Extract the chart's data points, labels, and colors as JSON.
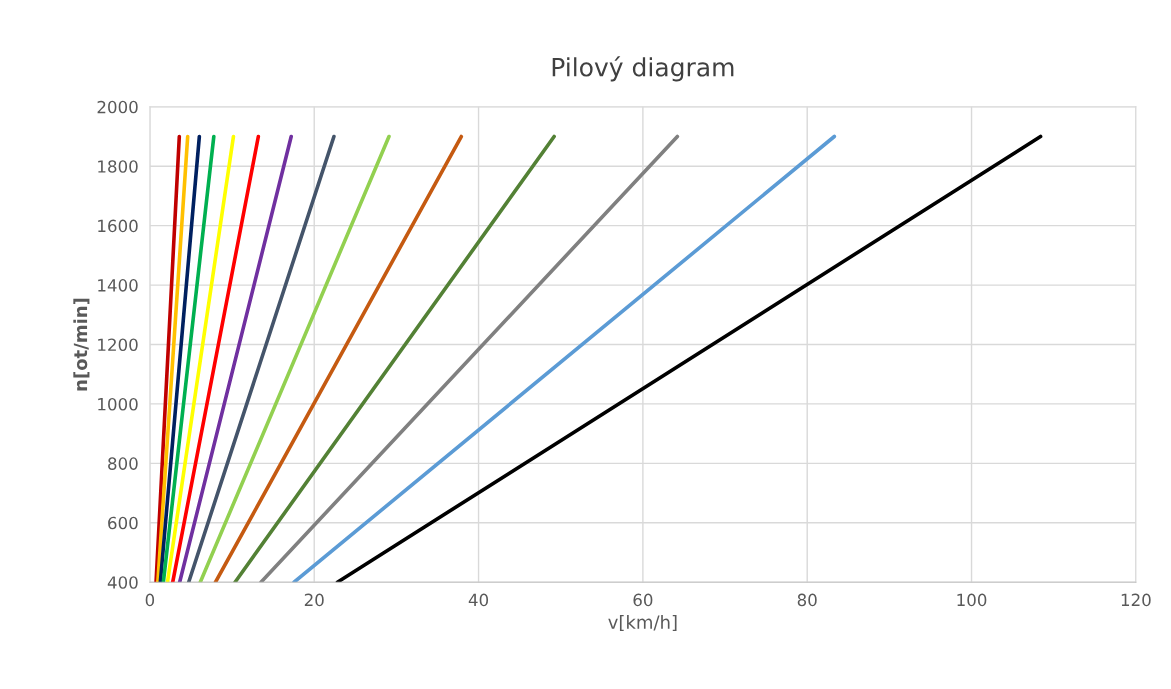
{
  "chart_data": {
    "type": "line",
    "title": "Pilový diagram",
    "xlabel": "v[km/h]",
    "ylabel": "n[ot/min]",
    "xlim": [
      0,
      120
    ],
    "xticks": [
      0,
      20,
      40,
      60,
      80,
      100,
      120
    ],
    "ylim": [
      400,
      2000
    ],
    "yticks": [
      400,
      600,
      800,
      1000,
      1200,
      1400,
      1600,
      1800,
      2000
    ],
    "grid": true,
    "legend": false,
    "marker": "none",
    "line_style": "solid",
    "series": [
      {
        "color": "#c00000",
        "x": [
          0.75,
          3.58
        ],
        "values": [
          400,
          1900
        ]
      },
      {
        "color": "#ffc000",
        "x": [
          0.97,
          4.6
        ],
        "values": [
          400,
          1900
        ]
      },
      {
        "color": "#002060",
        "x": [
          1.27,
          6.02
        ],
        "values": [
          400,
          1900
        ]
      },
      {
        "color": "#00b050",
        "x": [
          1.64,
          7.78
        ],
        "values": [
          400,
          1900
        ]
      },
      {
        "color": "#ffff00",
        "x": [
          2.14,
          10.17
        ],
        "values": [
          400,
          1900
        ]
      },
      {
        "color": "#ff0000",
        "x": [
          2.78,
          13.2
        ],
        "values": [
          400,
          1900
        ]
      },
      {
        "color": "#7030a0",
        "x": [
          3.62,
          17.2
        ],
        "values": [
          400,
          1900
        ]
      },
      {
        "color": "#44546a",
        "x": [
          4.72,
          22.4
        ],
        "values": [
          400,
          1900
        ]
      },
      {
        "color": "#92d050",
        "x": [
          6.13,
          29.1
        ],
        "values": [
          400,
          1900
        ]
      },
      {
        "color": "#c55a11",
        "x": [
          7.98,
          37.9
        ],
        "values": [
          400,
          1900
        ]
      },
      {
        "color": "#538135",
        "x": [
          10.36,
          49.2
        ],
        "values": [
          400,
          1900
        ]
      },
      {
        "color": "#808080",
        "x": [
          13.52,
          64.2
        ],
        "values": [
          400,
          1900
        ]
      },
      {
        "color": "#5b9bd5",
        "x": [
          17.54,
          83.3
        ],
        "values": [
          400,
          1900
        ]
      },
      {
        "color": "#000000",
        "x": [
          22.82,
          108.4
        ],
        "values": [
          400,
          1900
        ]
      }
    ]
  }
}
